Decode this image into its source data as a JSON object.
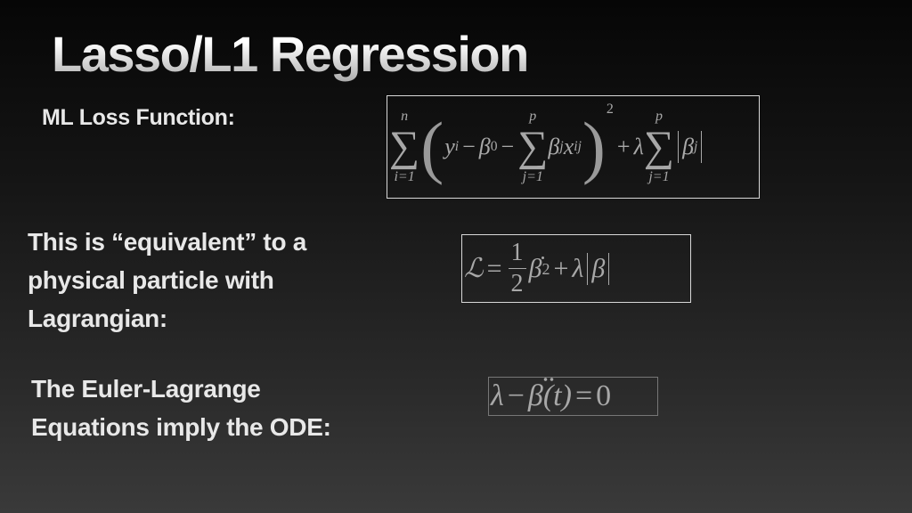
{
  "slide": {
    "title": "Lasso/L1 Regression",
    "labels": {
      "loss": "ML Loss Function:",
      "equivalent": "This is “equivalent” to a physical particle with Lagrangian:",
      "euler": "The Euler-Lagrange Equations imply the ODE:"
    },
    "eq1": {
      "sigma": "∑",
      "n": "n",
      "i1": "i=1",
      "p": "p",
      "j1": "j=1",
      "lparen": "(",
      "rparen": ")",
      "y": "y",
      "i": "i",
      "minus": "−",
      "beta": "β",
      "zero": "0",
      "j": "j",
      "x": "x",
      "ij": "ij",
      "two": "2",
      "plus": "+",
      "lambda": "λ"
    },
    "eq2": {
      "L": "ℒ",
      "eq": "=",
      "one": "1",
      "two": "2",
      "beta": "β",
      "plus": "+",
      "lambda": "λ"
    },
    "eq3": {
      "lambda": "λ",
      "minus": "−",
      "beta": "β",
      "t": "(t)",
      "eq": "=",
      "zero": "0"
    }
  }
}
